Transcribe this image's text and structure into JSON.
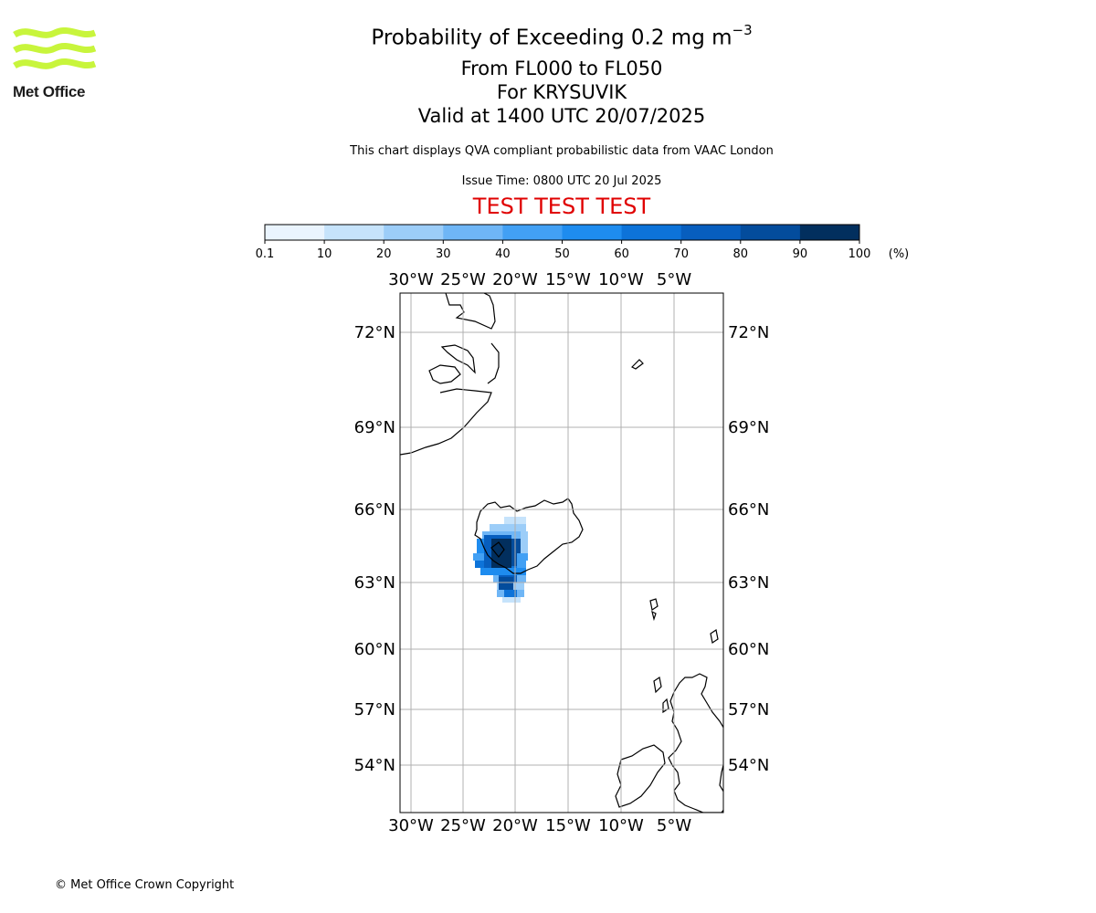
{
  "logo": {
    "name": "Met Office",
    "colors": {
      "waves": "#c8f53c"
    }
  },
  "header": {
    "title_main": "Probability of Exceeding 0.2 mg m",
    "title_exp": "−3",
    "levels": "From FL000 to FL050",
    "location": "For KRYSUVIK",
    "valid": "Valid at 1400 UTC 20/07/2025",
    "description": "This chart displays QVA compliant probabilistic data from VAAC London",
    "issue_time": "Issue Time: 0800 UTC 20 Jul 2025",
    "test_banner": "TEST TEST TEST",
    "test_color": "#e00000"
  },
  "colorbar": {
    "ticks": [
      "0.1",
      "10",
      "20",
      "30",
      "40",
      "50",
      "60",
      "70",
      "80",
      "90",
      "100"
    ],
    "unit": "(%)",
    "colors": [
      "#eaf4fe",
      "#c6e3fb",
      "#9ccdf8",
      "#6fb6f6",
      "#42a0f4",
      "#1e8cef",
      "#0d73d9",
      "#075ebe",
      "#034c9c",
      "#022f5e"
    ]
  },
  "map": {
    "lon_labels": [
      "30°W",
      "25°W",
      "20°W",
      "15°W",
      "10°W",
      "5°W"
    ],
    "lat_labels": [
      "72°N",
      "69°N",
      "66°N",
      "63°N",
      "60°N",
      "57°N",
      "54°N"
    ],
    "gridlines": true,
    "region": "Iceland and North Atlantic"
  },
  "footer": {
    "copyright": "© Met Office Crown Copyright"
  }
}
